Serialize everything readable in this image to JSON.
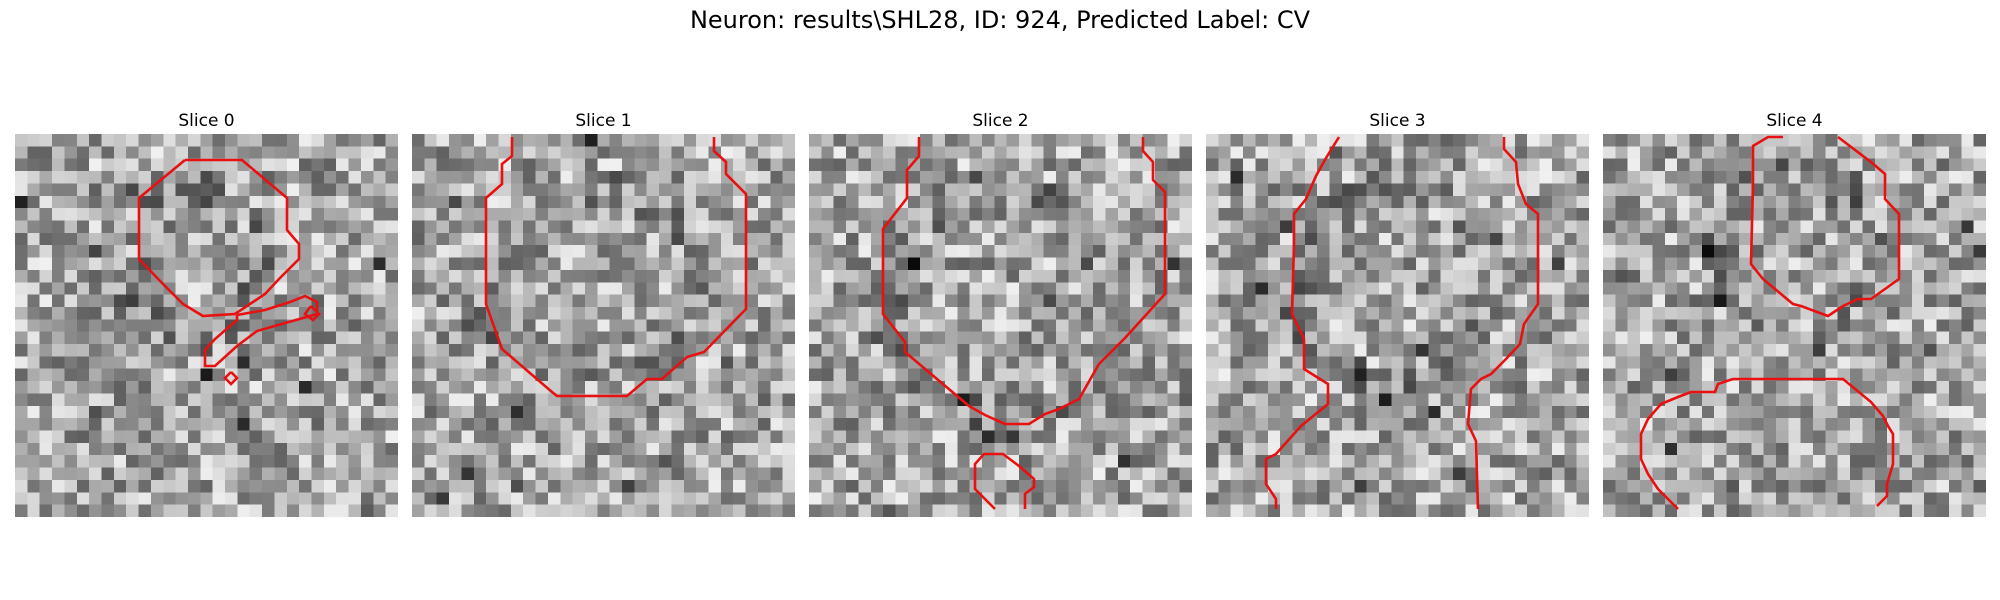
{
  "figure": {
    "title": "Neuron: results\\SHL28, ID: 924, Predicted Label: CV",
    "contour_color": "#e81010",
    "grid_cells": 31,
    "colormap": "gray"
  },
  "panels": [
    {
      "label": "Slice 0"
    },
    {
      "label": "Slice 1"
    },
    {
      "label": "Slice 2"
    },
    {
      "label": "Slice 3"
    },
    {
      "label": "Slice 4"
    }
  ]
}
